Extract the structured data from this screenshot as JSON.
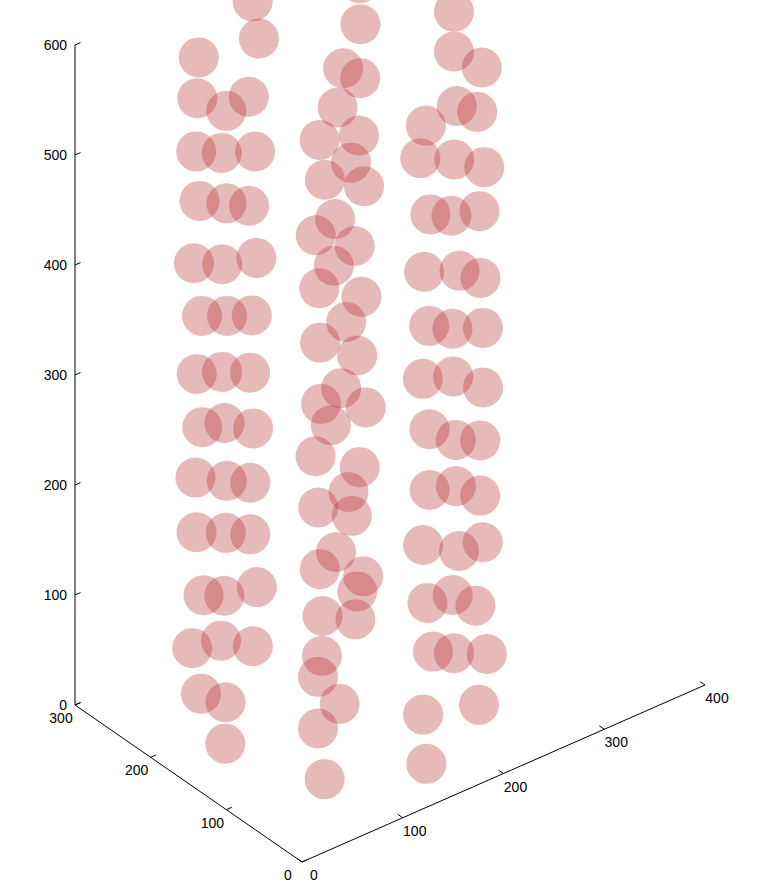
{
  "chart_data": {
    "type": "scatter3d",
    "color": "#b01c1c",
    "xlim": [
      0,
      400
    ],
    "ylim": [
      0,
      300
    ],
    "zlim": [
      0,
      600
    ],
    "xticks": [
      0,
      100,
      200,
      300,
      400
    ],
    "yticks": [
      0,
      100,
      200,
      300
    ],
    "zticks": [
      0,
      100,
      200,
      300,
      400,
      500,
      600
    ],
    "grid": false,
    "points": [
      [
        262,
        148,
        14
      ],
      [
        228,
        233,
        18
      ],
      [
        148,
        262,
        12
      ],
      [
        71,
        228,
        16
      ],
      [
        38,
        152,
        20
      ],
      [
        72,
        66,
        15
      ],
      [
        152,
        38,
        10
      ],
      [
        229,
        71,
        17
      ],
      [
        150,
        150,
        12
      ],
      [
        266,
        155,
        62
      ],
      [
        232,
        228,
        58
      ],
      [
        155,
        266,
        61
      ],
      [
        66,
        233,
        57
      ],
      [
        33,
        145,
        63
      ],
      [
        70,
        72,
        59
      ],
      [
        145,
        33,
        60
      ],
      [
        233,
        66,
        64
      ],
      [
        140,
        160,
        55
      ],
      [
        264,
        144,
        108
      ],
      [
        226,
        235,
        112
      ],
      [
        150,
        268,
        110
      ],
      [
        72,
        226,
        106
      ],
      [
        36,
        155,
        113
      ],
      [
        67,
        68,
        109
      ],
      [
        157,
        36,
        111
      ],
      [
        227,
        73,
        107
      ],
      [
        160,
        140,
        115
      ],
      [
        267,
        152,
        162
      ],
      [
        230,
        230,
        157
      ],
      [
        147,
        264,
        160
      ],
      [
        68,
        230,
        163
      ],
      [
        34,
        148,
        158
      ],
      [
        73,
        70,
        161
      ],
      [
        150,
        34,
        159
      ],
      [
        232,
        70,
        164
      ],
      [
        148,
        152,
        150
      ],
      [
        263,
        147,
        208
      ],
      [
        233,
        226,
        212
      ],
      [
        152,
        267,
        206
      ],
      [
        70,
        234,
        210
      ],
      [
        37,
        150,
        213
      ],
      [
        68,
        67,
        207
      ],
      [
        148,
        37,
        211
      ],
      [
        228,
        68,
        209
      ],
      [
        155,
        145,
        205
      ],
      [
        265,
        153,
        262
      ],
      [
        229,
        232,
        258
      ],
      [
        146,
        263,
        261
      ],
      [
        73,
        229,
        257
      ],
      [
        35,
        146,
        263
      ],
      [
        71,
        73,
        259
      ],
      [
        153,
        35,
        260
      ],
      [
        231,
        72,
        256
      ],
      [
        145,
        155,
        265
      ],
      [
        262,
        150,
        308
      ],
      [
        231,
        229,
        312
      ],
      [
        150,
        266,
        310
      ],
      [
        69,
        231,
        306
      ],
      [
        38,
        153,
        311
      ],
      [
        66,
        70,
        309
      ],
      [
        155,
        38,
        313
      ],
      [
        230,
        67,
        307
      ],
      [
        150,
        148,
        300
      ],
      [
        266,
        146,
        361
      ],
      [
        228,
        234,
        357
      ],
      [
        153,
        264,
        362
      ],
      [
        72,
        228,
        359
      ],
      [
        34,
        151,
        360
      ],
      [
        70,
        68,
        356
      ],
      [
        147,
        36,
        363
      ],
      [
        233,
        71,
        358
      ],
      [
        158,
        152,
        355
      ],
      [
        264,
        154,
        408
      ],
      [
        232,
        227,
        413
      ],
      [
        148,
        267,
        410
      ],
      [
        67,
        232,
        407
      ],
      [
        36,
        147,
        412
      ],
      [
        72,
        72,
        409
      ],
      [
        151,
        33,
        411
      ],
      [
        229,
        69,
        406
      ],
      [
        142,
        147,
        415
      ],
      [
        263,
        149,
        462
      ],
      [
        230,
        231,
        458
      ],
      [
        151,
        263,
        460
      ],
      [
        71,
        230,
        463
      ],
      [
        35,
        152,
        457
      ],
      [
        69,
        69,
        461
      ],
      [
        149,
        37,
        459
      ],
      [
        231,
        73,
        464
      ],
      [
        150,
        156,
        450
      ],
      [
        267,
        151,
        508
      ],
      [
        229,
        228,
        512
      ],
      [
        147,
        266,
        510
      ],
      [
        70,
        233,
        507
      ],
      [
        37,
        149,
        513
      ],
      [
        67,
        71,
        509
      ],
      [
        153,
        34,
        511
      ],
      [
        232,
        68,
        506
      ],
      [
        156,
        143,
        505
      ],
      [
        262,
        148,
        561
      ],
      [
        233,
        233,
        557
      ],
      [
        154,
        262,
        562
      ],
      [
        68,
        229,
        558
      ],
      [
        33,
        150,
        560
      ],
      [
        73,
        67,
        559
      ],
      [
        146,
        38,
        563
      ],
      [
        228,
        72,
        556
      ],
      [
        148,
        150,
        555
      ],
      [
        265,
        152,
        594
      ],
      [
        230,
        230,
        597
      ],
      [
        150,
        265,
        596
      ],
      [
        71,
        231,
        593
      ],
      [
        36,
        148,
        598
      ],
      [
        70,
        70,
        595
      ],
      [
        150,
        36,
        592
      ],
      [
        231,
        70,
        596
      ],
      [
        152,
        148,
        590
      ]
    ]
  }
}
